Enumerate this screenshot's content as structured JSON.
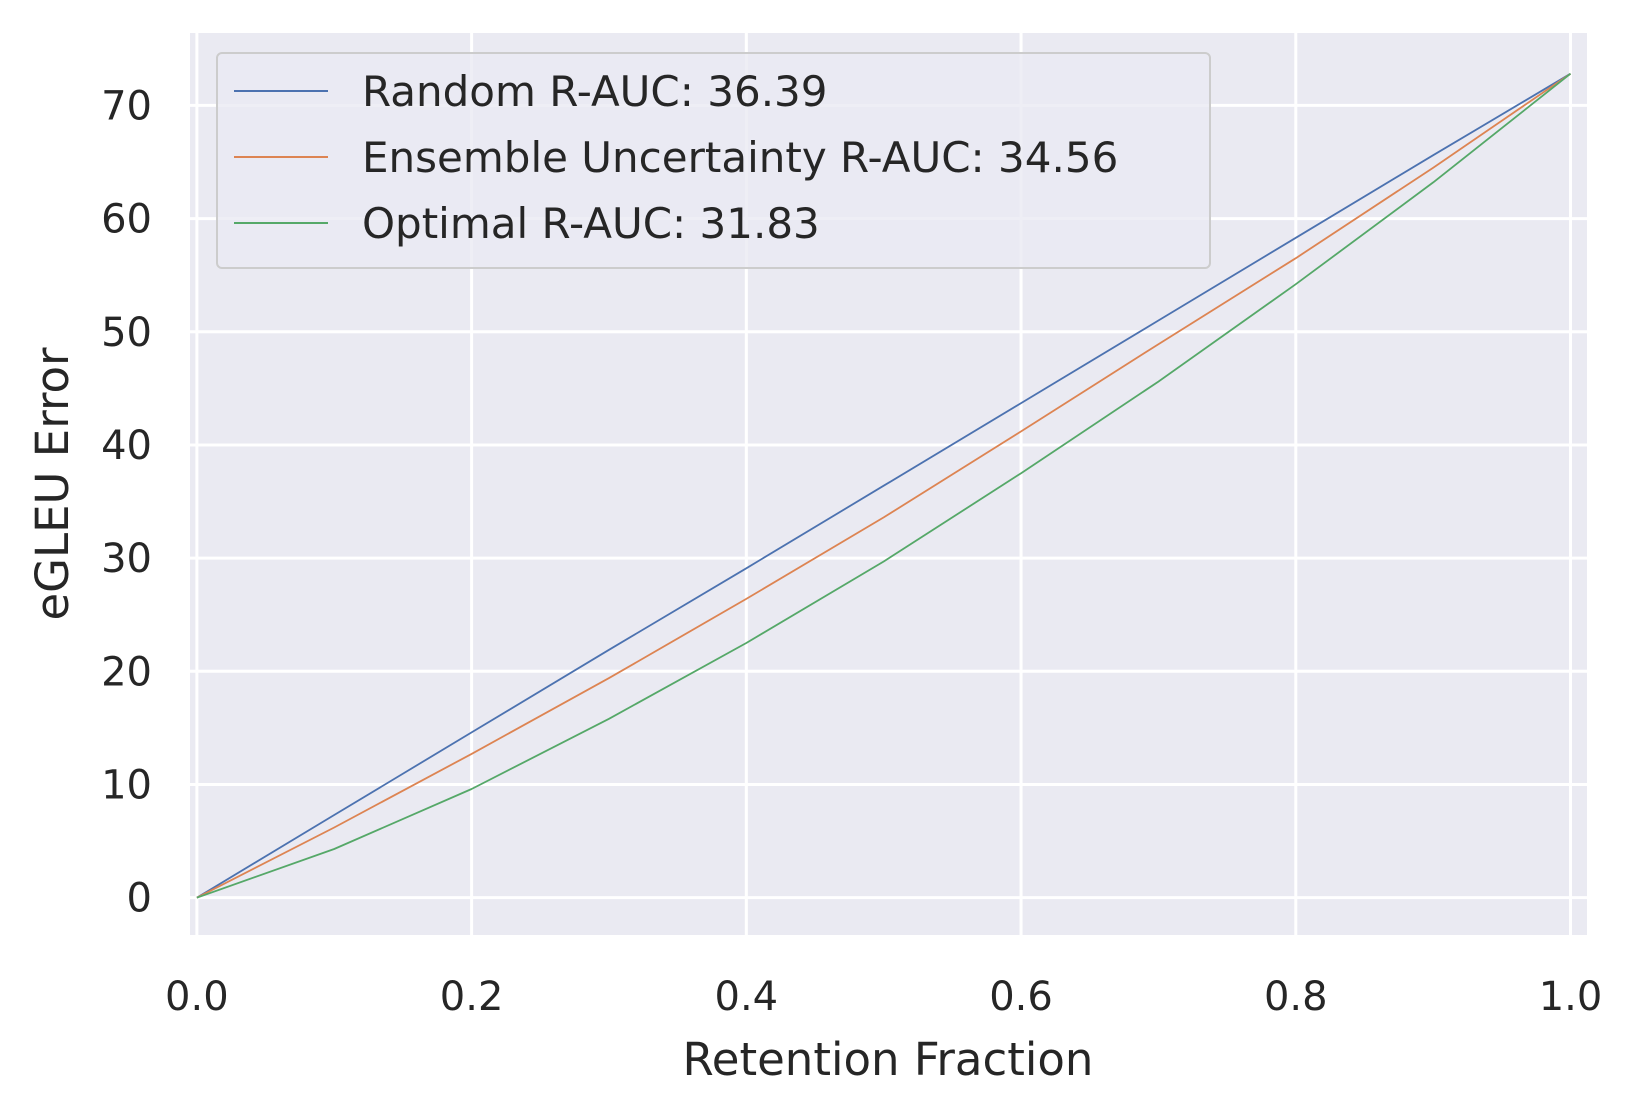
{
  "chart_data": {
    "type": "line",
    "title": "",
    "xlabel": "Retention Fraction",
    "ylabel": "eGLEU Error",
    "xlim": [
      -0.005,
      1.012
    ],
    "ylim": [
      -3.3,
      76.4
    ],
    "xticks": [
      0.0,
      0.2,
      0.4,
      0.6,
      0.8,
      1.0
    ],
    "xtick_labels": [
      "0.0",
      "0.2",
      "0.4",
      "0.6",
      "0.8",
      "1.0"
    ],
    "yticks": [
      0,
      10,
      20,
      30,
      40,
      50,
      60,
      70
    ],
    "ytick_labels": [
      "0",
      "10",
      "20",
      "30",
      "40",
      "50",
      "60",
      "70"
    ],
    "grid": true,
    "legend_position": "top-left",
    "x": [
      0.0,
      0.1,
      0.2,
      0.3,
      0.4,
      0.5,
      0.6,
      0.7,
      0.8,
      0.9,
      1.0
    ],
    "series": [
      {
        "name": "Random R-AUC: 36.39",
        "color": "#4c72b0",
        "values": [
          0.0,
          7.3,
          14.6,
          21.9,
          29.1,
          36.4,
          43.7,
          51.0,
          58.3,
          65.6,
          72.8
        ]
      },
      {
        "name": "Ensemble Uncertainty R-AUC: 34.56",
        "color": "#dd8452",
        "values": [
          0.0,
          6.2,
          12.7,
          19.4,
          26.4,
          33.6,
          41.2,
          48.9,
          56.5,
          64.5,
          72.8
        ]
      },
      {
        "name": "Optimal R-AUC: 31.83",
        "color": "#55a868",
        "values": [
          0.0,
          4.3,
          9.6,
          15.8,
          22.5,
          29.7,
          37.5,
          45.6,
          54.2,
          63.2,
          72.8
        ]
      }
    ]
  }
}
